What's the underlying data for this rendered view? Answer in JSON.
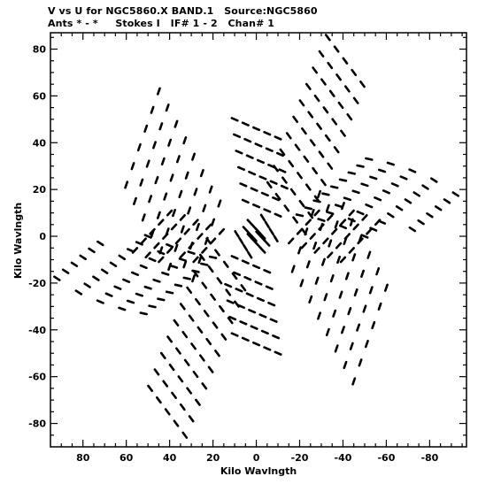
{
  "header": {
    "line1": "V vs U for NGC5860.X BAND.1   Source:NGC5860",
    "line2": "Ants * - *     Stokes I   IF# 1 - 2   Chan# 1"
  },
  "chart_data": {
    "type": "scatter",
    "title": "V vs U for NGC5860.X BAND.1   Source:NGC5860",
    "subtitle": "Ants * - *     Stokes I   IF# 1 - 2   Chan# 1",
    "xlabel": "Kilo Wavlngth",
    "ylabel": "Kilo Wavlngth",
    "xlim": [
      95,
      -97
    ],
    "ylim": [
      -90,
      87
    ],
    "x_inverted": true,
    "grid": false,
    "marker_color": "#000000",
    "xticks": [
      80,
      60,
      40,
      20,
      0,
      -20,
      -40,
      -60,
      -80
    ],
    "xtick_labels": [
      "80",
      "60",
      "40",
      "20",
      "0",
      "-20",
      "-40",
      "-60",
      "-80"
    ],
    "yticks": [
      80,
      60,
      40,
      20,
      0,
      -20,
      -40,
      -60,
      -80
    ],
    "ytick_labels": [
      "80",
      "60",
      "40",
      "20",
      "0",
      "-20",
      "-40",
      "-60",
      "-80"
    ],
    "description_of_tracks": "u-v coverage arcs forming a six-armed snowflake pattern; points are symmetric under (u,v)->(-u,-v)",
    "tracks": [
      {
        "u": [
          -33,
          -37,
          -41,
          -45,
          -49
        ],
        "v": [
          85,
          80,
          75,
          70,
          65
        ]
      },
      {
        "u": [
          -30,
          -34,
          -38,
          -42,
          -46
        ],
        "v": [
          78,
          73,
          68,
          63,
          58
        ]
      },
      {
        "u": [
          -27,
          -31,
          -35,
          -39,
          -43
        ],
        "v": [
          71,
          66,
          61,
          56,
          51
        ]
      },
      {
        "u": [
          -24,
          -28,
          -32,
          -36,
          -40
        ],
        "v": [
          64,
          59,
          54,
          49,
          44
        ]
      },
      {
        "u": [
          -21,
          -25,
          -29,
          -33,
          -37
        ],
        "v": [
          57,
          52,
          47,
          42,
          37
        ]
      },
      {
        "u": [
          -18,
          -22,
          -26,
          -30,
          -34
        ],
        "v": [
          50,
          45,
          40,
          35,
          30
        ]
      },
      {
        "u": [
          -15,
          -19,
          -23,
          -27,
          -31
        ],
        "v": [
          43,
          38,
          33,
          28,
          23
        ]
      },
      {
        "u": [
          -12,
          -16,
          -20,
          -24,
          -28
        ],
        "v": [
          36,
          31,
          26,
          21,
          16
        ]
      },
      {
        "u": [
          -9,
          -13,
          -17,
          -21,
          -25
        ],
        "v": [
          29,
          24,
          19,
          14,
          9
        ]
      },
      {
        "u": [
          -6,
          -10,
          -14,
          -18,
          -22
        ],
        "v": [
          22,
          17,
          12,
          7,
          2
        ]
      },
      {
        "u": [
          45,
          48,
          51,
          54,
          57,
          60
        ],
        "v": [
          62,
          54,
          46,
          38,
          30,
          22
        ]
      },
      {
        "u": [
          41,
          44,
          47,
          50,
          53,
          56
        ],
        "v": [
          55,
          47,
          39,
          31,
          23,
          15
        ]
      },
      {
        "u": [
          37,
          40,
          43,
          46,
          49,
          52
        ],
        "v": [
          48,
          40,
          32,
          24,
          16,
          8
        ]
      },
      {
        "u": [
          33,
          36,
          39,
          42,
          45,
          48
        ],
        "v": [
          41,
          33,
          25,
          17,
          9,
          1
        ]
      },
      {
        "u": [
          29,
          32,
          35,
          38,
          41,
          44
        ],
        "v": [
          34,
          26,
          18,
          10,
          2,
          -6
        ]
      },
      {
        "u": [
          25,
          28,
          31,
          34,
          37,
          40
        ],
        "v": [
          27,
          19,
          11,
          3,
          -5,
          -13
        ]
      },
      {
        "u": [
          21,
          24,
          27,
          30,
          33
        ],
        "v": [
          20,
          12,
          4,
          -4,
          -12
        ]
      },
      {
        "u": [
          17,
          20,
          23,
          26,
          29
        ],
        "v": [
          14,
          6,
          -2,
          -10,
          -18
        ]
      },
      {
        "u": [
          -52,
          -62,
          -72,
          -82,
          -92
        ],
        "v": [
          33,
          31,
          28,
          24,
          18
        ]
      },
      {
        "u": [
          -48,
          -58,
          -68,
          -78,
          -88
        ],
        "v": [
          30,
          28,
          25,
          21,
          15
        ]
      },
      {
        "u": [
          -44,
          -54,
          -64,
          -74,
          -84
        ],
        "v": [
          27,
          25,
          22,
          18,
          12
        ]
      },
      {
        "u": [
          -40,
          -50,
          -60,
          -70,
          -80
        ],
        "v": [
          24,
          22,
          19,
          15,
          9
        ]
      },
      {
        "u": [
          -36,
          -46,
          -56,
          -66,
          -76
        ],
        "v": [
          21,
          19,
          16,
          12,
          6
        ]
      },
      {
        "u": [
          -32,
          -42,
          -52,
          -62,
          -72
        ],
        "v": [
          18,
          16,
          13,
          9,
          3
        ]
      },
      {
        "u": [
          -28,
          -38,
          -48,
          -58
        ],
        "v": [
          15,
          13,
          10,
          6
        ]
      },
      {
        "u": [
          -24,
          -34,
          -44,
          -54
        ],
        "v": [
          12,
          10,
          7,
          3
        ]
      },
      {
        "u": [
          -20,
          -30,
          -40,
          -50
        ],
        "v": [
          9,
          7,
          4,
          0
        ]
      },
      {
        "u": [
          10,
          5,
          0,
          -5,
          -10
        ],
        "v": [
          50,
          48,
          46,
          44,
          42
        ]
      },
      {
        "u": [
          9,
          4,
          -1,
          -6,
          -11
        ],
        "v": [
          43,
          41,
          39,
          37,
          35
        ]
      },
      {
        "u": [
          8,
          3,
          -2,
          -7,
          -12
        ],
        "v": [
          36,
          34,
          32,
          30,
          28
        ]
      },
      {
        "u": [
          7,
          2,
          -3,
          -8,
          -13
        ],
        "v": [
          29,
          27,
          25,
          23,
          21
        ]
      },
      {
        "u": [
          6,
          1,
          -4,
          -9
        ],
        "v": [
          22,
          20,
          18,
          16
        ]
      },
      {
        "u": [
          5,
          0,
          -5,
          -10
        ],
        "v": [
          15,
          13,
          11,
          9
        ]
      },
      {
        "u": [
          40,
          44,
          48,
          52,
          56
        ],
        "v": [
          10,
          6,
          2,
          -2,
          -6
        ]
      },
      {
        "u": [
          34,
          38,
          42,
          46,
          50
        ],
        "v": [
          8,
          4,
          0,
          -4,
          -8
        ]
      },
      {
        "u": [
          28,
          32,
          36,
          40,
          44
        ],
        "v": [
          6,
          2,
          -2,
          -6,
          -10
        ]
      },
      {
        "u": [
          22,
          26,
          30,
          34
        ],
        "v": [
          4,
          0,
          -4,
          -8
        ]
      },
      {
        "u": [
          16,
          20,
          24,
          28
        ],
        "v": [
          2,
          -2,
          -6,
          -10
        ]
      },
      {
        "u": [
          -3,
          -5,
          -7,
          -9
        ],
        "v": [
          8,
          5,
          2,
          -1
        ]
      },
      {
        "u": [
          3,
          1,
          -1,
          -3
        ],
        "v": [
          6,
          4,
          2,
          0
        ]
      },
      {
        "u": [
          5,
          3,
          1
        ],
        "v": [
          3,
          1,
          -1
        ]
      }
    ]
  }
}
